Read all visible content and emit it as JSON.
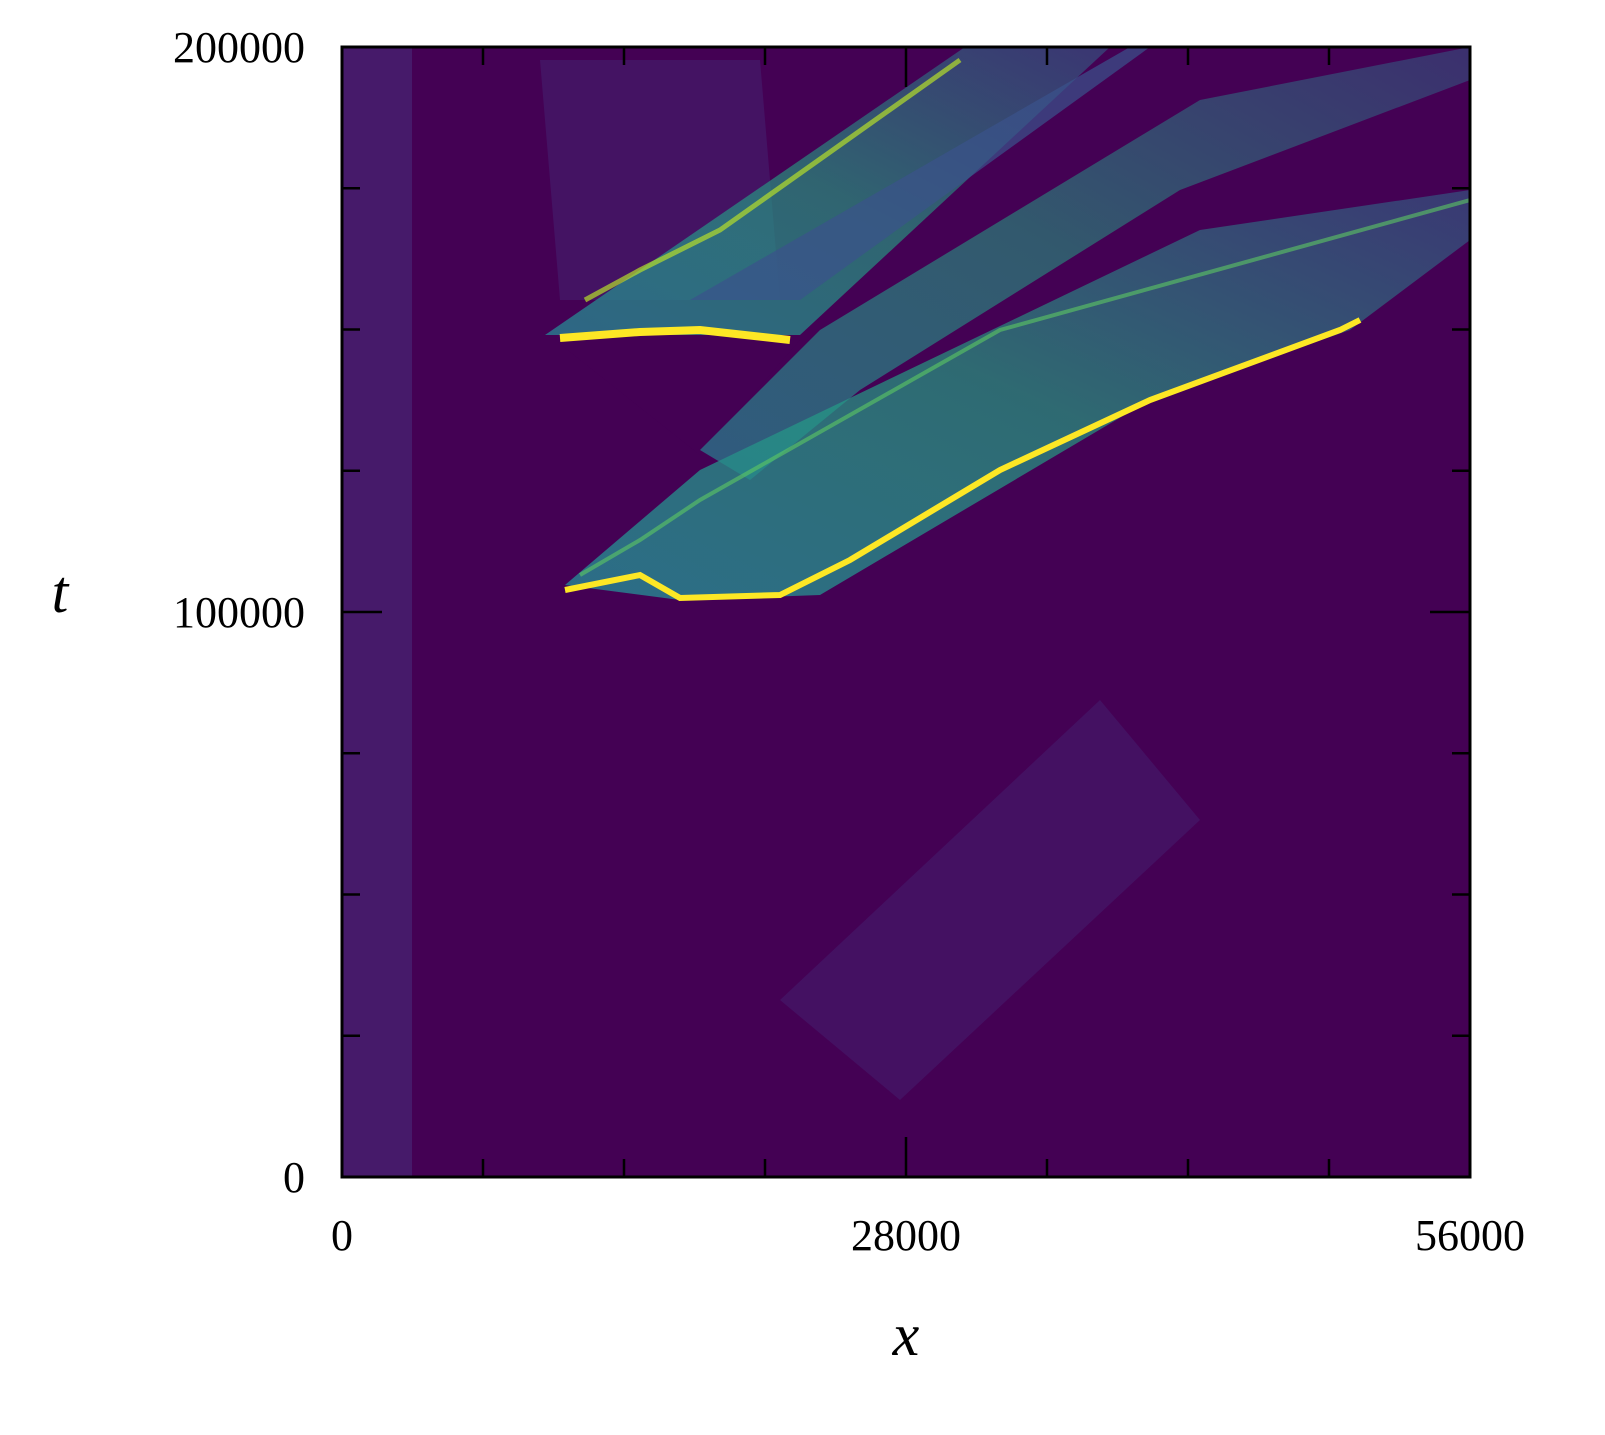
{
  "chart_data": {
    "type": "heatmap",
    "colormap": "viridis",
    "xlabel": "x",
    "ylabel": "t",
    "xlim": [
      0,
      56000
    ],
    "ylim": [
      0,
      200000
    ],
    "xticks": [
      0,
      28000,
      56000
    ],
    "yticks": [
      0,
      100000,
      200000
    ],
    "xminorticks": [
      7000,
      14000,
      21000,
      35000,
      42000,
      49000
    ],
    "yminorticks": [
      25000,
      50000,
      75000,
      125000,
      150000,
      175000
    ]
  }
}
